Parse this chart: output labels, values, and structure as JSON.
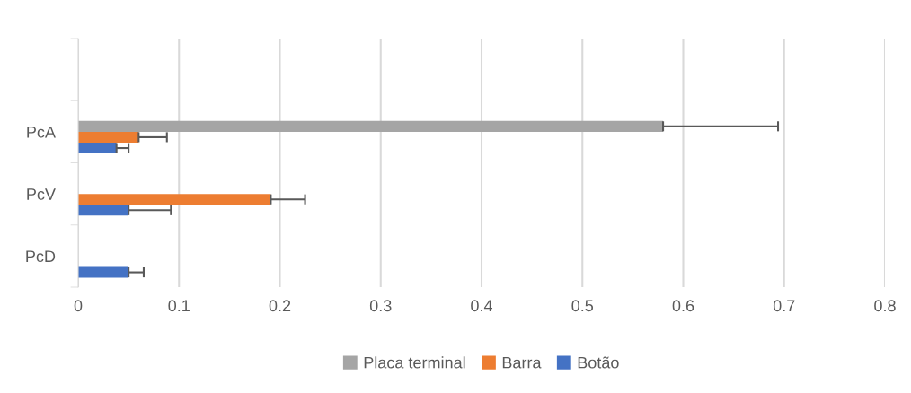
{
  "chart_data": {
    "type": "bar",
    "orientation": "horizontal",
    "categories": [
      null,
      "PcA",
      "PcV",
      "PcD"
    ],
    "series": [
      {
        "name": "Placa terminal",
        "color": "#a5a5a5",
        "values": [
          null,
          0.58,
          null,
          null
        ],
        "errors": [
          null,
          [
            0.58,
            0.694
          ],
          null,
          null
        ]
      },
      {
        "name": "Barra",
        "color": "#ed7d31",
        "values": [
          null,
          0.06,
          0.191,
          null
        ],
        "errors": [
          null,
          [
            0.06,
            0.088
          ],
          [
            0.191,
            0.225
          ],
          null
        ]
      },
      {
        "name": "Botão",
        "color": "#4472c4",
        "values": [
          null,
          0.038,
          0.05,
          0.05
        ],
        "errors": [
          null,
          [
            0.038,
            0.05
          ],
          [
            0.05,
            0.092
          ],
          [
            0.05,
            0.065
          ]
        ]
      }
    ],
    "xlim": [
      0,
      0.8
    ],
    "xticks": [
      0,
      0.1,
      0.2,
      0.3,
      0.4,
      0.5,
      0.6,
      0.7,
      0.8
    ],
    "grid": "x",
    "legend": "bottom"
  }
}
